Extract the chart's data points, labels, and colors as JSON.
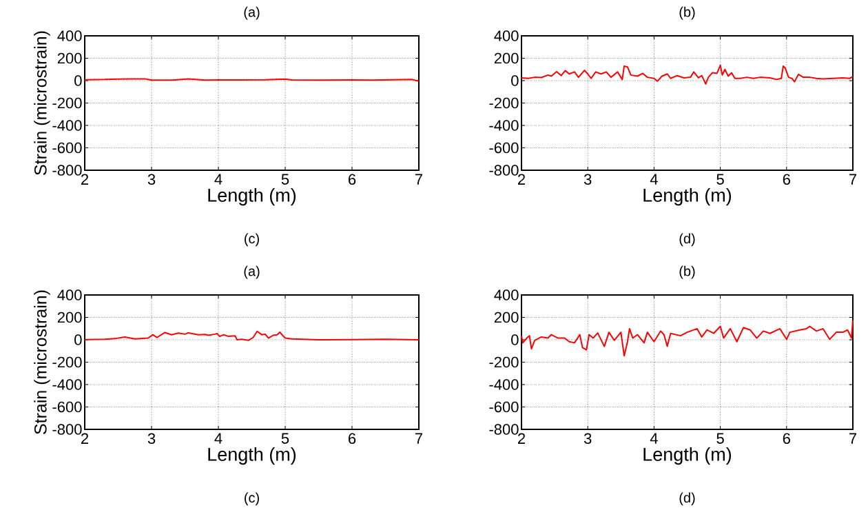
{
  "chart_data": [
    {
      "type": "line",
      "title": "(a)",
      "xlabel": "Length (m)",
      "ylabel": "Strain (microstrain)",
      "annotations": [
        "(c)"
      ],
      "color": "#ff0000",
      "grid": true,
      "xlim": [
        2,
        7
      ],
      "ylim": [
        -800,
        400
      ],
      "xticks": [
        2,
        3,
        4,
        5,
        6,
        7
      ],
      "yticks": [
        -800,
        -600,
        -400,
        -200,
        0,
        200,
        400
      ],
      "x": [
        2.0,
        2.3,
        2.5,
        2.7,
        2.9,
        3.0,
        3.3,
        3.55,
        3.8,
        4.0,
        4.3,
        4.7,
        5.0,
        5.1,
        5.5,
        6.0,
        6.3,
        6.6,
        6.9,
        7.0
      ],
      "values": [
        8,
        10,
        14,
        15,
        16,
        5,
        4,
        15,
        5,
        6,
        6,
        8,
        14,
        6,
        5,
        6,
        4,
        8,
        10,
        -5
      ]
    },
    {
      "type": "line",
      "title": "(b)",
      "xlabel": "Length (m)",
      "annotations": [
        "(d)"
      ],
      "color": "#ff0000",
      "grid": true,
      "xlim": [
        2,
        7
      ],
      "ylim": [
        -800,
        400
      ],
      "xticks": [
        2,
        3,
        4,
        5,
        6,
        7
      ],
      "yticks": [
        -800,
        -600,
        -400,
        -200,
        0,
        200,
        400
      ],
      "x": [
        2.0,
        2.1,
        2.2,
        2.3,
        2.4,
        2.45,
        2.53,
        2.6,
        2.66,
        2.72,
        2.8,
        2.86,
        2.95,
        3.0,
        3.05,
        3.12,
        3.2,
        3.28,
        3.35,
        3.45,
        3.52,
        3.55,
        3.6,
        3.65,
        3.75,
        3.83,
        3.9,
        4.0,
        4.05,
        4.12,
        4.2,
        4.25,
        4.35,
        4.45,
        4.55,
        4.6,
        4.67,
        4.72,
        4.78,
        4.82,
        4.88,
        4.95,
        5.0,
        5.03,
        5.07,
        5.12,
        5.17,
        5.22,
        5.3,
        5.4,
        5.5,
        5.6,
        5.75,
        5.85,
        5.92,
        5.95,
        5.98,
        6.03,
        6.08,
        6.12,
        6.18,
        6.25,
        6.35,
        6.45,
        6.55,
        6.7,
        6.85,
        6.95,
        7.0
      ],
      "values": [
        25,
        20,
        30,
        28,
        50,
        40,
        80,
        45,
        90,
        60,
        78,
        30,
        92,
        60,
        20,
        78,
        60,
        78,
        30,
        78,
        10,
        130,
        122,
        50,
        40,
        65,
        30,
        20,
        -5,
        40,
        60,
        20,
        45,
        25,
        30,
        78,
        25,
        45,
        -30,
        30,
        70,
        65,
        138,
        50,
        100,
        40,
        70,
        20,
        20,
        30,
        20,
        30,
        25,
        10,
        20,
        130,
        112,
        30,
        20,
        -10,
        57,
        30,
        30,
        20,
        15,
        20,
        25,
        20,
        35
      ]
    },
    {
      "type": "line",
      "title": "(a)",
      "xlabel": "Length (m)",
      "ylabel": "Strain (microstrain)",
      "annotations": [
        "(c)"
      ],
      "color": "#ff0000",
      "grid": true,
      "xlim": [
        2,
        7
      ],
      "ylim": [
        -800,
        400
      ],
      "xticks": [
        2,
        3,
        4,
        5,
        6,
        7
      ],
      "yticks": [
        -800,
        -600,
        -400,
        -200,
        0,
        200,
        400
      ],
      "x": [
        2.0,
        2.3,
        2.45,
        2.6,
        2.75,
        2.95,
        3.02,
        3.08,
        3.2,
        3.3,
        3.4,
        3.5,
        3.55,
        3.7,
        3.8,
        3.85,
        3.95,
        3.98,
        4.02,
        4.08,
        4.15,
        4.25,
        4.28,
        4.35,
        4.45,
        4.52,
        4.58,
        4.65,
        4.7,
        4.75,
        4.82,
        4.88,
        4.92,
        4.96,
        5.0,
        5.1,
        5.5,
        6.0,
        6.5,
        7.0
      ],
      "values": [
        2,
        5,
        10,
        25,
        8,
        15,
        45,
        20,
        65,
        45,
        60,
        50,
        62,
        45,
        48,
        40,
        50,
        55,
        30,
        45,
        30,
        35,
        0,
        5,
        -5,
        20,
        75,
        45,
        50,
        15,
        40,
        45,
        68,
        40,
        15,
        8,
        0,
        2,
        5,
        0
      ]
    },
    {
      "type": "line",
      "title": "(b)",
      "xlabel": "Length (m)",
      "annotations": [
        "(d)"
      ],
      "color": "#ff0000",
      "grid": true,
      "xlim": [
        2,
        7
      ],
      "ylim": [
        -800,
        400
      ],
      "xticks": [
        2,
        3,
        4,
        5,
        6,
        7
      ],
      "yticks": [
        -800,
        -600,
        -400,
        -200,
        0,
        200,
        400
      ],
      "x": [
        2.0,
        2.02,
        2.08,
        2.12,
        2.15,
        2.2,
        2.3,
        2.4,
        2.45,
        2.55,
        2.65,
        2.72,
        2.8,
        2.88,
        2.92,
        2.98,
        3.02,
        3.08,
        3.15,
        3.25,
        3.32,
        3.4,
        3.5,
        3.55,
        3.6,
        3.63,
        3.68,
        3.75,
        3.85,
        3.9,
        4.0,
        4.1,
        4.15,
        4.2,
        4.25,
        4.4,
        4.5,
        4.65,
        4.72,
        4.8,
        4.9,
        5.0,
        5.05,
        5.15,
        5.25,
        5.35,
        5.45,
        5.55,
        5.65,
        5.75,
        5.9,
        6.0,
        6.05,
        6.2,
        6.3,
        6.35,
        6.45,
        6.55,
        6.65,
        6.75,
        6.85,
        6.92,
        6.98,
        7.0
      ],
      "values": [
        36,
        -27,
        15,
        36,
        -80,
        -5,
        25,
        15,
        46,
        15,
        15,
        -17,
        -27,
        46,
        -70,
        -90,
        46,
        15,
        61,
        -59,
        67,
        -5,
        67,
        -143,
        -17,
        99,
        15,
        46,
        -27,
        67,
        -17,
        78,
        46,
        -59,
        57,
        36,
        67,
        99,
        25,
        88,
        57,
        120,
        15,
        99,
        -17,
        109,
        88,
        15,
        78,
        57,
        99,
        4,
        67,
        88,
        99,
        120,
        78,
        99,
        4,
        67,
        67,
        88,
        15,
        172
      ]
    }
  ]
}
